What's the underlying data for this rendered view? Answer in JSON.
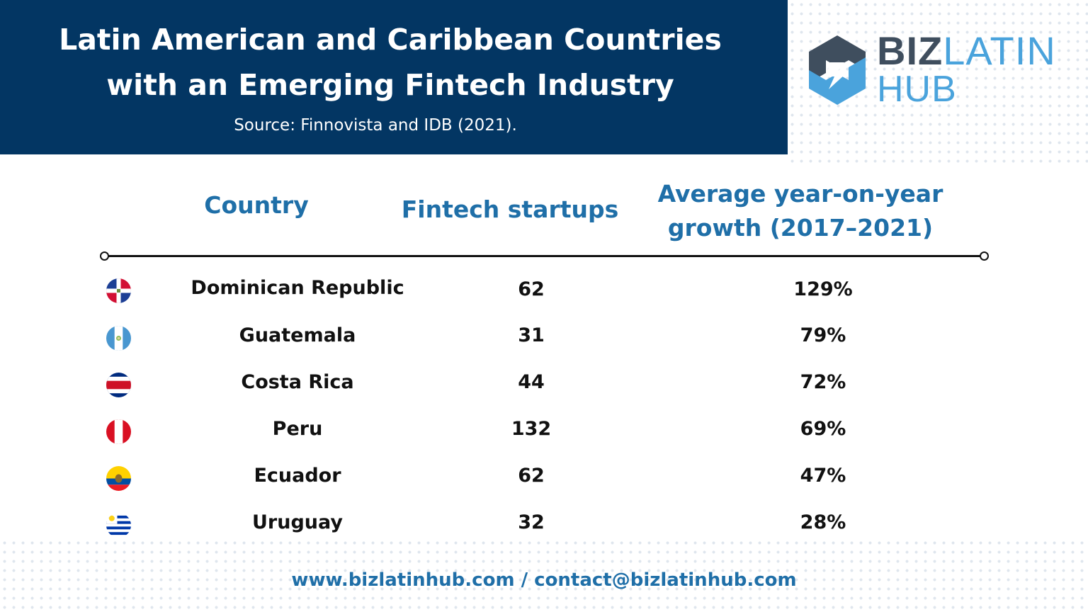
{
  "header": {
    "title_line1": "Latin American and Caribbean Countries",
    "title_line2": "with an Emerging Fintech Industry",
    "source": "Source: Finnovista and IDB (2021)."
  },
  "logo": {
    "biz": "BIZ",
    "latin": "LATIN",
    "hub": "HUB",
    "colors": {
      "dark": "#3f4e5e",
      "light": "#4aa3dc"
    }
  },
  "table": {
    "headers": {
      "country": "Country",
      "startups": "Fintech startups",
      "growth_line1": "Average year-on-year",
      "growth_line2": "growth (2017–2021)"
    },
    "rows": [
      {
        "flag": "dominican-republic-flag-icon",
        "country": "Dominican Republic",
        "startups": "62",
        "growth": "129%"
      },
      {
        "flag": "guatemala-flag-icon",
        "country": "Guatemala",
        "startups": "31",
        "growth": "79%"
      },
      {
        "flag": "costa-rica-flag-icon",
        "country": "Costa Rica",
        "startups": "44",
        "growth": "72%"
      },
      {
        "flag": "peru-flag-icon",
        "country": "Peru",
        "startups": "132",
        "growth": "69%"
      },
      {
        "flag": "ecuador-flag-icon",
        "country": "Ecuador",
        "startups": "62",
        "growth": "47%"
      },
      {
        "flag": "uruguay-flag-icon",
        "country": "Uruguay",
        "startups": "32",
        "growth": "28%"
      }
    ]
  },
  "footer": {
    "contact": "www.bizlatinhub.com / contact@bizlatinhub.com"
  },
  "colors": {
    "header_bg": "#033663",
    "accent_blue": "#1f6fa8",
    "text": "#111111"
  }
}
